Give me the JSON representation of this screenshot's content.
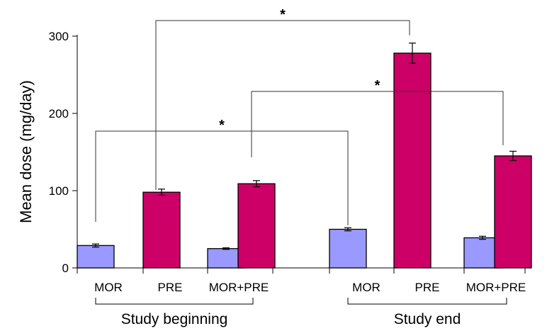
{
  "chart_data": {
    "type": "bar",
    "title": "",
    "xlabel": "",
    "ylabel": "Mean dose (mg/day)",
    "ylim": [
      0,
      300
    ],
    "yticks": [
      0,
      100,
      200,
      300
    ],
    "grid": false,
    "groups": [
      {
        "label": "Study beginning",
        "categories": [
          "MOR",
          "PRE",
          "MOR+PRE"
        ]
      },
      {
        "label": "Study end",
        "categories": [
          "MOR",
          "PRE",
          "MOR+PRE"
        ]
      }
    ],
    "bars": [
      {
        "group": 0,
        "category": "MOR",
        "drug": "MOR",
        "value": 29,
        "error": 2
      },
      {
        "group": 0,
        "category": "PRE",
        "drug": "PRE",
        "value": 98,
        "error": 4
      },
      {
        "group": 0,
        "category": "MOR+PRE",
        "drug": "MOR",
        "value": 25,
        "error": 1
      },
      {
        "group": 0,
        "category": "MOR+PRE",
        "drug": "PRE",
        "value": 109,
        "error": 4
      },
      {
        "group": 1,
        "category": "MOR",
        "drug": "MOR",
        "value": 50,
        "error": 2
      },
      {
        "group": 1,
        "category": "PRE",
        "drug": "PRE",
        "value": 278,
        "error": 13
      },
      {
        "group": 1,
        "category": "MOR+PRE",
        "drug": "MOR",
        "value": 39,
        "error": 2
      },
      {
        "group": 1,
        "category": "MOR+PRE",
        "drug": "PRE",
        "value": 145,
        "error": 6
      }
    ],
    "annotations": [
      {
        "text": "*",
        "type": "significance",
        "from": "Study beginning PRE",
        "to": "Study end PRE"
      },
      {
        "text": "*",
        "type": "significance",
        "from": "Study beginning MOR+PRE",
        "to": "Study end MOR+PRE"
      },
      {
        "text": "*",
        "type": "significance",
        "from": "Study beginning MOR",
        "to": "Study end MOR"
      }
    ],
    "colors": {
      "MOR": "#9999ff",
      "PRE": "#cc0066",
      "outline": "#000000"
    }
  }
}
